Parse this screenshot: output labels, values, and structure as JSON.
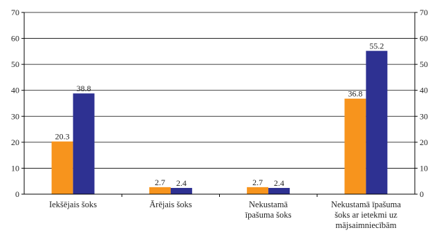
{
  "chart_data": {
    "type": "bar",
    "categories": [
      [
        "Iekšējais šoks"
      ],
      [
        "Ārējais šoks"
      ],
      [
        "Nekustamā",
        "īpašuma šoks"
      ],
      [
        "Nekustamā īpašuma",
        "šoks ar ietekmi uz",
        "mājsaimniecībām"
      ]
    ],
    "series": [
      {
        "color": "#F7941D",
        "values": [
          20.3,
          2.7,
          2.7,
          36.8
        ]
      },
      {
        "color": "#2E3192",
        "values": [
          38.8,
          2.4,
          2.4,
          55.2
        ]
      }
    ],
    "data_labels": [
      [
        "20.3",
        "2.7",
        "2.7",
        "36.8"
      ],
      [
        "38.8",
        "2.4",
        "2.4",
        "55.2"
      ]
    ],
    "y_ticks_left": [
      "0",
      "10",
      "20",
      "30",
      "40",
      "50",
      "60",
      "70"
    ],
    "y_ticks_right": [
      "0",
      "10",
      "20",
      "30",
      "40",
      "50",
      "60",
      "70"
    ],
    "ylim": [
      0,
      70
    ],
    "grid": true,
    "legend": "none",
    "title": "",
    "xlabel": "",
    "ylabel": ""
  }
}
